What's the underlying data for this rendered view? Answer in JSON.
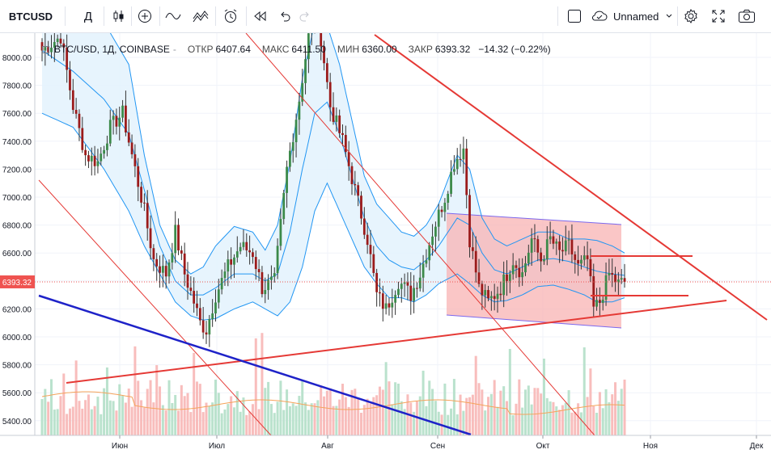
{
  "toolbar": {
    "symbol": "BTCUSD",
    "interval": "Д",
    "layout_name": "Unnamed",
    "icons": [
      "candles-icon",
      "add-indicator-icon",
      "indicators-icon",
      "compare-icon",
      "alert-icon",
      "replay-icon",
      "undo-icon",
      "redo-icon",
      "checkbox-icon",
      "cloud-icon",
      "chevron-down-icon",
      "settings-icon",
      "fullscreen-icon",
      "camera-icon"
    ]
  },
  "legend": {
    "symbol": "BTC/USD, 1Д, COINBASE",
    "open_label": "ОТКР",
    "open": "6407.64",
    "high_label": "МАКС",
    "high": "6411.50",
    "low_label": "МИН",
    "low": "6360.00",
    "close_label": "ЗАКР",
    "close": "6393.32",
    "change": "−14.32 (−0.22%)"
  },
  "colors": {
    "bull": "#26a69a",
    "bear": "#ef5350",
    "bb_line": "#2196f3",
    "bb_fill": "#e3f2fd",
    "trend_red": "#e53935",
    "trend_blue": "#1e22c8",
    "channel_fill": "#f8b3b3",
    "channel_border": "#7b68ee"
  },
  "chart_data": {
    "type": "candlestick",
    "title": "BTC/USD, 1Д, COINBASE",
    "y_axis": {
      "ticks": [
        5400,
        5600,
        5800,
        6000,
        6200,
        6400,
        6600,
        6800,
        7000,
        7200,
        7400,
        7600,
        7800,
        8000
      ],
      "range": [
        5280,
        8150
      ],
      "grid": true
    },
    "x_axis": {
      "ticks": [
        "Июн",
        "Июл",
        "Авг",
        "Сен",
        "Окт",
        "Ноя",
        "Дек"
      ],
      "grid": true
    },
    "last_price": {
      "value": 6393.32,
      "label": "6393.32"
    },
    "ohlc_anchors_close": [
      [
        0,
        8050
      ],
      [
        6,
        8150
      ],
      [
        10,
        7650
      ],
      [
        14,
        7300
      ],
      [
        18,
        7250
      ],
      [
        22,
        7500
      ],
      [
        26,
        7600
      ],
      [
        30,
        7200
      ],
      [
        33,
        6900
      ],
      [
        36,
        6550
      ],
      [
        40,
        6450
      ],
      [
        43,
        6750
      ],
      [
        46,
        6450
      ],
      [
        49,
        6250
      ],
      [
        51,
        6100
      ],
      [
        53,
        6050
      ],
      [
        56,
        6300
      ],
      [
        60,
        6500
      ],
      [
        64,
        6650
      ],
      [
        68,
        6600
      ],
      [
        71,
        6350
      ],
      [
        75,
        6400
      ],
      [
        79,
        7200
      ],
      [
        83,
        7700
      ],
      [
        86,
        8150
      ],
      [
        89,
        8300
      ],
      [
        93,
        7650
      ],
      [
        97,
        7400
      ],
      [
        101,
        7050
      ],
      [
        105,
        6700
      ],
      [
        108,
        6300
      ],
      [
        111,
        6200
      ],
      [
        115,
        6400
      ],
      [
        119,
        6300
      ],
      [
        122,
        6450
      ],
      [
        126,
        6750
      ],
      [
        130,
        7000
      ],
      [
        133,
        7250
      ],
      [
        136,
        7350
      ],
      [
        138,
        6700
      ],
      [
        141,
        6350
      ],
      [
        144,
        6250
      ],
      [
        148,
        6350
      ],
      [
        152,
        6550
      ],
      [
        155,
        6450
      ],
      [
        158,
        6700
      ],
      [
        161,
        6550
      ],
      [
        164,
        6700
      ],
      [
        167,
        6600
      ],
      [
        170,
        6650
      ],
      [
        173,
        6500
      ],
      [
        176,
        6550
      ],
      [
        178,
        6200
      ],
      [
        180,
        6250
      ],
      [
        183,
        6450
      ],
      [
        186,
        6380
      ],
      [
        188,
        6393.32
      ]
    ],
    "bollinger_bands_anchors": {
      "upper": [
        [
          0,
          8500
        ],
        [
          10,
          8300
        ],
        [
          20,
          8250
        ],
        [
          28,
          7950
        ],
        [
          33,
          7300
        ],
        [
          38,
          6800
        ],
        [
          43,
          6550
        ],
        [
          48,
          6450
        ],
        [
          52,
          6500
        ],
        [
          56,
          6650
        ],
        [
          62,
          6790
        ],
        [
          68,
          6750
        ],
        [
          72,
          6620
        ],
        [
          76,
          6800
        ],
        [
          80,
          7250
        ],
        [
          84,
          7850
        ],
        [
          88,
          8250
        ],
        [
          92,
          8230
        ],
        [
          96,
          7950
        ],
        [
          100,
          7550
        ],
        [
          104,
          7150
        ],
        [
          108,
          6950
        ],
        [
          112,
          6850
        ],
        [
          116,
          6750
        ],
        [
          120,
          6720
        ],
        [
          124,
          6800
        ],
        [
          128,
          6950
        ],
        [
          134,
          7300
        ],
        [
          138,
          7200
        ],
        [
          142,
          6850
        ],
        [
          146,
          6700
        ],
        [
          150,
          6650
        ],
        [
          155,
          6700
        ],
        [
          160,
          6750
        ],
        [
          165,
          6750
        ],
        [
          170,
          6700
        ],
        [
          175,
          6700
        ],
        [
          179,
          6690
        ],
        [
          184,
          6650
        ],
        [
          188,
          6600
        ]
      ],
      "middle": [
        [
          0,
          8050
        ],
        [
          10,
          7900
        ],
        [
          20,
          7700
        ],
        [
          28,
          7450
        ],
        [
          33,
          7050
        ],
        [
          38,
          6650
        ],
        [
          43,
          6400
        ],
        [
          48,
          6300
        ],
        [
          52,
          6300
        ],
        [
          56,
          6350
        ],
        [
          62,
          6450
        ],
        [
          68,
          6450
        ],
        [
          72,
          6400
        ],
        [
          76,
          6450
        ],
        [
          80,
          6750
        ],
        [
          84,
          7200
        ],
        [
          88,
          7600
        ],
        [
          92,
          7680
        ],
        [
          96,
          7450
        ],
        [
          100,
          7150
        ],
        [
          104,
          6850
        ],
        [
          108,
          6650
        ],
        [
          112,
          6550
        ],
        [
          116,
          6500
        ],
        [
          120,
          6480
        ],
        [
          124,
          6550
        ],
        [
          128,
          6650
        ],
        [
          134,
          6850
        ],
        [
          138,
          6800
        ],
        [
          142,
          6600
        ],
        [
          146,
          6480
        ],
        [
          150,
          6450
        ],
        [
          155,
          6500
        ],
        [
          160,
          6550
        ],
        [
          165,
          6560
        ],
        [
          170,
          6540
        ],
        [
          175,
          6500
        ],
        [
          179,
          6470
        ],
        [
          184,
          6450
        ],
        [
          188,
          6440
        ]
      ],
      "lower": [
        [
          0,
          7600
        ],
        [
          10,
          7500
        ],
        [
          20,
          7200
        ],
        [
          28,
          6900
        ],
        [
          33,
          6650
        ],
        [
          38,
          6450
        ],
        [
          43,
          6250
        ],
        [
          48,
          6150
        ],
        [
          52,
          6120
        ],
        [
          56,
          6130
        ],
        [
          62,
          6200
        ],
        [
          68,
          6250
        ],
        [
          72,
          6200
        ],
        [
          76,
          6150
        ],
        [
          80,
          6250
        ],
        [
          84,
          6500
        ],
        [
          88,
          6900
        ],
        [
          92,
          7100
        ],
        [
          96,
          6900
        ],
        [
          100,
          6700
        ],
        [
          104,
          6500
        ],
        [
          108,
          6380
        ],
        [
          112,
          6280
        ],
        [
          116,
          6280
        ],
        [
          120,
          6250
        ],
        [
          124,
          6300
        ],
        [
          128,
          6380
        ],
        [
          134,
          6450
        ],
        [
          138,
          6380
        ],
        [
          142,
          6300
        ],
        [
          146,
          6250
        ],
        [
          150,
          6260
        ],
        [
          155,
          6300
        ],
        [
          160,
          6360
        ],
        [
          165,
          6370
        ],
        [
          170,
          6340
        ],
        [
          175,
          6300
        ],
        [
          179,
          6250
        ],
        [
          184,
          6250
        ],
        [
          188,
          6280
        ]
      ]
    },
    "volume": {
      "sma_visible": true,
      "sma_color": "#f5a35a"
    }
  }
}
